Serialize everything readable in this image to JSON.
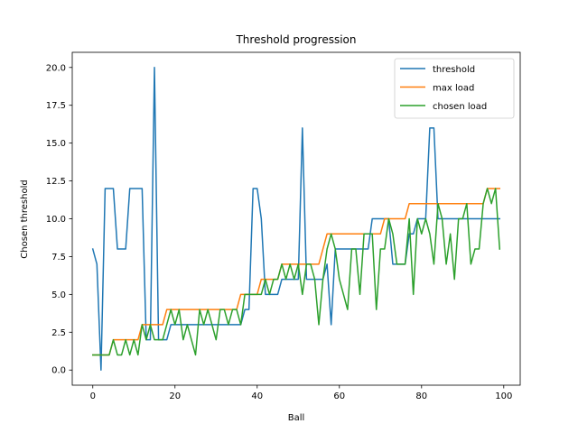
{
  "chart_data": {
    "type": "line",
    "title": "Threshold progression",
    "xlabel": "Ball",
    "ylabel": "Chosen threshold",
    "xlim": [
      -5,
      104
    ],
    "ylim": [
      -1,
      21
    ],
    "x_ticks": [
      0,
      20,
      40,
      60,
      80,
      100
    ],
    "y_ticks": [
      0.0,
      2.5,
      5.0,
      7.5,
      10.0,
      12.5,
      15.0,
      17.5,
      20.0
    ],
    "x_tick_labels": [
      "0",
      "20",
      "40",
      "60",
      "80",
      "100"
    ],
    "y_tick_labels": [
      "0.0",
      "2.5",
      "5.0",
      "7.5",
      "10.0",
      "12.5",
      "15.0",
      "17.5",
      "20.0"
    ],
    "grid": false,
    "legend_position": "top-right",
    "x": [
      0,
      1,
      2,
      3,
      4,
      5,
      6,
      7,
      8,
      9,
      10,
      11,
      12,
      13,
      14,
      15,
      16,
      17,
      18,
      19,
      20,
      21,
      22,
      23,
      24,
      25,
      26,
      27,
      28,
      29,
      30,
      31,
      32,
      33,
      34,
      35,
      36,
      37,
      38,
      39,
      40,
      41,
      42,
      43,
      44,
      45,
      46,
      47,
      48,
      49,
      50,
      51,
      52,
      53,
      54,
      55,
      56,
      57,
      58,
      59,
      60,
      61,
      62,
      63,
      64,
      65,
      66,
      67,
      68,
      69,
      70,
      71,
      72,
      73,
      74,
      75,
      76,
      77,
      78,
      79,
      80,
      81,
      82,
      83,
      84,
      85,
      86,
      87,
      88,
      89,
      90,
      91,
      92,
      93,
      94,
      95,
      96,
      97,
      98,
      99
    ],
    "series": [
      {
        "name": "threshold",
        "color": "#1f77b4",
        "values": [
          8,
          7,
          0,
          12,
          12,
          12,
          8,
          8,
          8,
          12,
          12,
          12,
          12,
          2,
          2,
          20,
          2,
          2,
          2,
          3,
          3,
          3,
          3,
          3,
          3,
          3,
          3,
          3,
          3,
          3,
          3,
          3,
          3,
          3,
          3,
          3,
          3,
          4,
          4,
          12,
          12,
          10,
          5,
          5,
          5,
          5,
          6,
          6,
          6,
          6,
          6,
          16,
          6,
          6,
          6,
          6,
          6,
          7,
          3,
          8,
          8,
          8,
          8,
          8,
          8,
          8,
          8,
          8,
          10,
          10,
          10,
          10,
          10,
          7,
          7,
          7,
          7,
          9,
          9,
          10,
          10,
          10,
          16,
          16,
          10,
          10,
          10,
          10,
          10,
          10,
          10,
          10,
          10,
          10,
          10,
          10,
          10,
          10,
          10,
          10
        ]
      },
      {
        "name": "max load",
        "color": "#ff7f0e",
        "values": [
          1,
          1,
          1,
          1,
          1,
          2,
          2,
          2,
          2,
          2,
          2,
          2,
          3,
          3,
          3,
          3,
          3,
          3,
          4,
          4,
          4,
          4,
          4,
          4,
          4,
          4,
          4,
          4,
          4,
          4,
          4,
          4,
          4,
          4,
          4,
          4,
          5,
          5,
          5,
          5,
          5,
          6,
          6,
          6,
          6,
          6,
          7,
          7,
          7,
          7,
          7,
          7,
          7,
          7,
          7,
          7,
          8,
          9,
          9,
          9,
          9,
          9,
          9,
          9,
          9,
          9,
          9,
          9,
          9,
          9,
          9,
          10,
          10,
          10,
          10,
          10,
          10,
          11,
          11,
          11,
          11,
          11,
          11,
          11,
          11,
          11,
          11,
          11,
          11,
          11,
          11,
          11,
          11,
          11,
          11,
          11,
          12,
          12,
          12,
          12
        ]
      },
      {
        "name": "chosen load",
        "color": "#2ca02c",
        "values": [
          1,
          1,
          1,
          1,
          1,
          2,
          1,
          1,
          2,
          1,
          2,
          1,
          3,
          2,
          3,
          2,
          2,
          2,
          3,
          4,
          3,
          4,
          2,
          3,
          2,
          1,
          4,
          3,
          4,
          3,
          2,
          4,
          4,
          3,
          4,
          4,
          3,
          5,
          5,
          5,
          5,
          5,
          6,
          5,
          6,
          6,
          7,
          6,
          7,
          6,
          7,
          5,
          7,
          7,
          6,
          3,
          6,
          8,
          9,
          8,
          6,
          5,
          4,
          8,
          8,
          5,
          9,
          9,
          9,
          4,
          8,
          8,
          10,
          9,
          7,
          7,
          7,
          10,
          5,
          10,
          9,
          10,
          9,
          7,
          11,
          10,
          7,
          9,
          6,
          10,
          10,
          11,
          7,
          8,
          8,
          11,
          12,
          11,
          12,
          8
        ]
      }
    ]
  }
}
